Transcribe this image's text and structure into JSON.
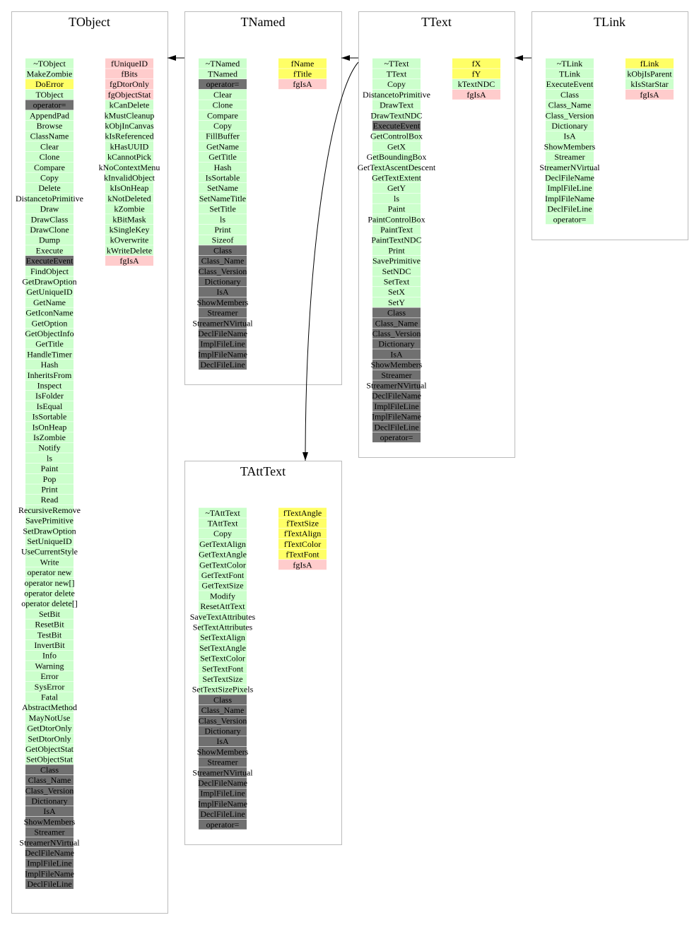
{
  "nodes": [
    {
      "title": "TObject",
      "methods": [
        {
          "color": "#ccffcc",
          "items": [
            "~TObject",
            "MakeZombie"
          ]
        },
        {
          "color": "#ffff66",
          "items": [
            "DoError"
          ]
        },
        {
          "color": "#ccffcc",
          "items": [
            "TObject"
          ]
        },
        {
          "color": "#707070",
          "items": [
            "operator="
          ]
        },
        {
          "color": "#ccffcc",
          "items": [
            "AppendPad",
            "Browse",
            "ClassName",
            "Clear",
            "Clone",
            "Compare",
            "Copy",
            "Delete",
            "DistancetoPrimitive",
            "Draw",
            "DrawClass",
            "DrawClone",
            "Dump",
            "Execute"
          ]
        },
        {
          "color": "#707070",
          "items": [
            "ExecuteEvent"
          ]
        },
        {
          "color": "#ccffcc",
          "items": [
            "FindObject",
            "GetDrawOption",
            "GetUniqueID",
            "GetName",
            "GetIconName",
            "GetOption",
            "GetObjectInfo",
            "GetTitle",
            "HandleTimer",
            "Hash",
            "InheritsFrom",
            "Inspect",
            "IsFolder",
            "IsEqual",
            "IsSortable",
            "IsOnHeap",
            "IsZombie",
            "Notify",
            "ls",
            "Paint",
            "Pop",
            "Print",
            "Read",
            "RecursiveRemove",
            "SavePrimitive",
            "SetDrawOption",
            "SetUniqueID",
            "UseCurrentStyle",
            "Write",
            "operator new",
            "operator new[]",
            "operator delete",
            "operator delete[]",
            "SetBit",
            "ResetBit",
            "TestBit",
            "InvertBit",
            "Info",
            "Warning",
            "Error",
            "SysError",
            "Fatal",
            "AbstractMethod",
            "MayNotUse",
            "GetDtorOnly",
            "SetDtorOnly",
            "GetObjectStat",
            "SetObjectStat"
          ]
        },
        {
          "color": "#707070",
          "items": [
            "Class",
            "Class_Name",
            "Class_Version",
            "Dictionary",
            "IsA",
            "ShowMembers",
            "Streamer",
            "StreamerNVirtual",
            "DeclFileName",
            "ImplFileLine",
            "ImplFileName",
            "DeclFileLine"
          ]
        }
      ],
      "members": [
        {
          "color": "#ffcccc",
          "items": [
            "fUniqueID",
            "fBits",
            "fgDtorOnly",
            "fgObjectStat"
          ]
        },
        {
          "color": "#ccffcc",
          "items": [
            "kCanDelete",
            "kMustCleanup",
            "kObjInCanvas",
            "kIsReferenced",
            "kHasUUID",
            "kCannotPick",
            "kNoContextMenu",
            "kInvalidObject",
            "kIsOnHeap",
            "kNotDeleted",
            "kZombie",
            "kBitMask",
            "kSingleKey",
            "kOverwrite",
            "kWriteDelete"
          ]
        },
        {
          "color": "#ffcccc",
          "items": [
            "fgIsA"
          ]
        }
      ]
    },
    {
      "title": "TNamed",
      "methods": [
        {
          "color": "#ccffcc",
          "items": [
            "~TNamed",
            "TNamed"
          ]
        },
        {
          "color": "#707070",
          "items": [
            "operator="
          ]
        },
        {
          "color": "#ccffcc",
          "items": [
            "Clear",
            "Clone",
            "Compare",
            "Copy",
            "FillBuffer",
            "GetName",
            "GetTitle",
            "Hash",
            "IsSortable",
            "SetName",
            "SetNameTitle",
            "SetTitle",
            "ls",
            "Print",
            "Sizeof"
          ]
        },
        {
          "color": "#707070",
          "items": [
            "Class",
            "Class_Name",
            "Class_Version",
            "Dictionary",
            "IsA",
            "ShowMembers",
            "Streamer",
            "StreamerNVirtual",
            "DeclFileName",
            "ImplFileLine",
            "ImplFileName",
            "DeclFileLine"
          ]
        }
      ],
      "members": [
        {
          "color": "#ffff66",
          "items": [
            "fName",
            "fTitle"
          ]
        },
        {
          "color": "#ffcccc",
          "items": [
            "fgIsA"
          ]
        }
      ]
    },
    {
      "title": "TText",
      "methods": [
        {
          "color": "#ccffcc",
          "items": [
            "~TText",
            "TText",
            "Copy",
            "DistancetoPrimitive",
            "DrawText",
            "DrawTextNDC"
          ]
        },
        {
          "color": "#707070",
          "items": [
            "ExecuteEvent"
          ]
        },
        {
          "color": "#ccffcc",
          "items": [
            "GetControlBox",
            "GetX",
            "GetBoundingBox",
            "GetTextAscentDescent",
            "GetTextExtent",
            "GetY",
            "ls",
            "Paint",
            "PaintControlBox",
            "PaintText",
            "PaintTextNDC",
            "Print",
            "SavePrimitive",
            "SetNDC",
            "SetText",
            "SetX",
            "SetY"
          ]
        },
        {
          "color": "#707070",
          "items": [
            "Class",
            "Class_Name",
            "Class_Version",
            "Dictionary",
            "IsA",
            "ShowMembers",
            "Streamer",
            "StreamerNVirtual",
            "DeclFileName",
            "ImplFileLine",
            "ImplFileName",
            "DeclFileLine",
            "operator="
          ]
        }
      ],
      "members": [
        {
          "color": "#ffff66",
          "items": [
            "fX",
            "fY"
          ]
        },
        {
          "color": "#ccffcc",
          "items": [
            "kTextNDC"
          ]
        },
        {
          "color": "#ffcccc",
          "items": [
            "fgIsA"
          ]
        }
      ]
    },
    {
      "title": "TLink",
      "methods": [
        {
          "color": "#ccffcc",
          "items": [
            "~TLink",
            "TLink",
            "ExecuteEvent",
            "Class",
            "Class_Name",
            "Class_Version",
            "Dictionary",
            "IsA",
            "ShowMembers",
            "Streamer",
            "StreamerNVirtual",
            "DeclFileName",
            "ImplFileLine",
            "ImplFileName",
            "DeclFileLine",
            "operator="
          ]
        }
      ],
      "members": [
        {
          "color": "#ffff66",
          "items": [
            "fLink"
          ]
        },
        {
          "color": "#ccffcc",
          "items": [
            "kObjIsParent",
            "kIsStarStar"
          ]
        },
        {
          "color": "#ffcccc",
          "items": [
            "fgIsA"
          ]
        }
      ]
    },
    {
      "title": "TAttText",
      "methods": [
        {
          "color": "#ccffcc",
          "items": [
            "~TAttText",
            "TAttText",
            "Copy",
            "GetTextAlign",
            "GetTextAngle",
            "GetTextColor",
            "GetTextFont",
            "GetTextSize",
            "Modify",
            "ResetAttText",
            "SaveTextAttributes",
            "SetTextAttributes",
            "SetTextAlign",
            "SetTextAngle",
            "SetTextColor",
            "SetTextFont",
            "SetTextSize",
            "SetTextSizePixels"
          ]
        },
        {
          "color": "#707070",
          "items": [
            "Class",
            "Class_Name",
            "Class_Version",
            "Dictionary",
            "IsA",
            "ShowMembers",
            "Streamer",
            "StreamerNVirtual",
            "DeclFileName",
            "ImplFileLine",
            "ImplFileName",
            "DeclFileLine",
            "operator="
          ]
        }
      ],
      "members": [
        {
          "color": "#ffff66",
          "items": [
            "fTextAngle",
            "fTextSize",
            "fTextAlign",
            "fTextColor",
            "fTextFont"
          ]
        },
        {
          "color": "#ffcccc",
          "items": [
            "fgIsA"
          ]
        }
      ]
    }
  ]
}
